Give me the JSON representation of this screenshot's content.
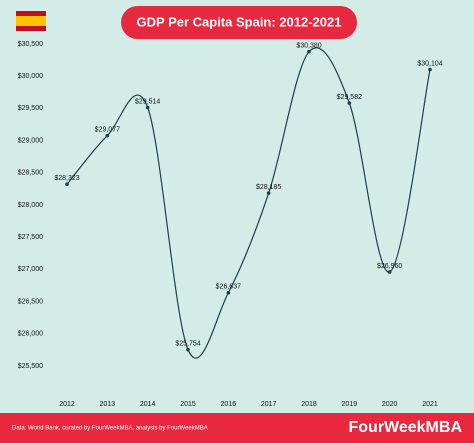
{
  "chart_data": {
    "type": "line",
    "title": "GDP Per Capita Spain: 2012-2021",
    "categories": [
      "2012",
      "2013",
      "2014",
      "2015",
      "2016",
      "2017",
      "2018",
      "2019",
      "2020",
      "2021"
    ],
    "series": [
      {
        "name": "GDP Per Capita",
        "color": "#1f3d4d",
        "values": [
          28323,
          29077,
          29514,
          25754,
          26637,
          28185,
          30380,
          29582,
          26960,
          30104
        ],
        "value_labels": [
          "$28,323",
          "$29,077",
          "$29,514",
          "$25,754",
          "$26,637",
          "$28,185",
          "$30,380",
          "$29,582",
          "$26,960",
          "$30,104"
        ]
      }
    ],
    "ylim": [
      25500,
      30500
    ],
    "yticks": [
      {
        "value": 25500,
        "label": "$25,500"
      },
      {
        "value": 26000,
        "label": "$26,000"
      },
      {
        "value": 26500,
        "label": "$26,500"
      },
      {
        "value": 27000,
        "label": "$27,000"
      },
      {
        "value": 27500,
        "label": "$27,500"
      },
      {
        "value": 28000,
        "label": "$28,000"
      },
      {
        "value": 28500,
        "label": "$28,500"
      },
      {
        "value": 29000,
        "label": "$29,000"
      },
      {
        "value": 29500,
        "label": "$29,500"
      },
      {
        "value": 30000,
        "label": "$30,000"
      },
      {
        "value": 30500,
        "label": "$30,500"
      }
    ],
    "footer": {
      "source": "Data: World Bank, curated by FourWeekMBA, analysis by FourWeekMBA",
      "brand": "FourWeekMBA"
    }
  }
}
